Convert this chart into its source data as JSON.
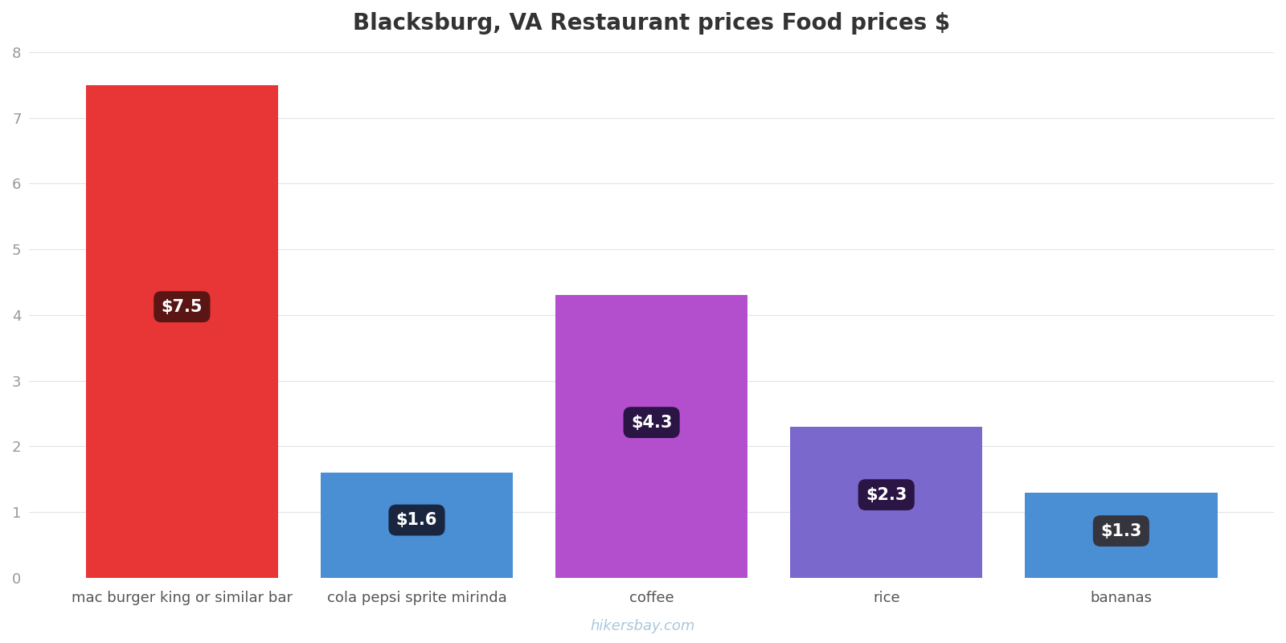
{
  "categories": [
    "mac burger king or similar bar",
    "cola pepsi sprite mirinda",
    "coffee",
    "rice",
    "bananas"
  ],
  "values": [
    7.5,
    1.6,
    4.3,
    2.3,
    1.3
  ],
  "bar_colors": [
    "#e83535",
    "#4a8fd4",
    "#b34fcc",
    "#7b68cc",
    "#4a8fd4"
  ],
  "label_bg_colors": [
    "#5a1515",
    "#1a2540",
    "#2a1545",
    "#2a1545",
    "#35353d"
  ],
  "title": "Blacksburg, VA Restaurant prices Food prices $",
  "title_fontsize": 20,
  "ylim": [
    0,
    8
  ],
  "yticks": [
    0,
    1,
    2,
    3,
    4,
    5,
    6,
    7,
    8
  ],
  "background_color": "#ffffff",
  "watermark": "hikersbay.com",
  "watermark_color": "#aac8dd",
  "bar_width": 0.82,
  "label_fontsize": 15
}
